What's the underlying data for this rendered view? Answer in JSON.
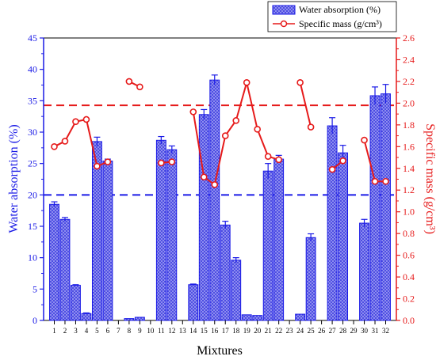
{
  "chart_data": {
    "type": "bar",
    "categories": [
      "1",
      "2",
      "3",
      "4",
      "5",
      "6",
      "7",
      "8",
      "9",
      "10",
      "11",
      "12",
      "13",
      "14",
      "15",
      "16",
      "17",
      "18",
      "19",
      "20",
      "21",
      "22",
      "23",
      "24",
      "25",
      "26",
      "27",
      "28",
      "29",
      "30",
      "31",
      "32"
    ],
    "xlabel": "Mixtures",
    "ylabel_left": "Water absorption (%)",
    "ylabel_right": "Specific mass (g/cm³)",
    "ylim_left": [
      0,
      45
    ],
    "ylim_right": [
      0,
      2.6
    ],
    "yticks_left": [
      0,
      5,
      10,
      15,
      20,
      25,
      30,
      35,
      40,
      45
    ],
    "yticks_right": [
      0.0,
      0.2,
      0.4,
      0.6,
      0.8,
      1.0,
      1.2,
      1.4,
      1.6,
      1.8,
      2.0,
      2.2,
      2.4,
      2.6
    ],
    "grid": false,
    "legend_position": "top-right",
    "series": [
      {
        "name": "Water absorption (%)",
        "type": "bar",
        "axis": "left",
        "color": "#1a1ae6",
        "values": [
          18.5,
          16.1,
          5.6,
          1.1,
          28.5,
          25.4,
          null,
          0.3,
          0.5,
          null,
          28.7,
          27.2,
          null,
          5.7,
          32.8,
          38.3,
          15.2,
          9.6,
          0.9,
          0.8,
          23.8,
          25.7,
          null,
          1.0,
          13.2,
          null,
          31.0,
          26.7,
          null,
          15.5,
          35.8,
          36.1
        ],
        "errors": [
          0.4,
          0.3,
          0.1,
          0.1,
          0.7,
          0.3,
          null,
          0.05,
          0.05,
          null,
          0.6,
          0.6,
          null,
          0.1,
          0.8,
          0.8,
          0.6,
          0.4,
          0.05,
          0.05,
          1.2,
          0.6,
          null,
          0.05,
          0.6,
          null,
          1.3,
          1.2,
          null,
          0.6,
          1.4,
          1.5
        ]
      },
      {
        "name": "Specific mass (g/cm³)",
        "type": "line",
        "axis": "right",
        "color": "#e61a1a",
        "values": [
          1.6,
          1.65,
          1.83,
          1.85,
          1.42,
          1.46,
          null,
          2.2,
          2.15,
          null,
          1.45,
          1.46,
          null,
          1.92,
          1.32,
          1.25,
          1.7,
          1.84,
          2.19,
          1.76,
          1.51,
          1.48,
          null,
          2.19,
          1.78,
          null,
          1.39,
          1.47,
          null,
          1.66,
          1.28,
          1.28
        ],
        "errors": [
          0.02,
          0.02,
          0.02,
          0.02,
          0.02,
          0.02,
          null,
          0.02,
          0.02,
          null,
          0.02,
          0.02,
          null,
          0.02,
          0.02,
          0.02,
          0.02,
          0.02,
          0.02,
          0.02,
          0.02,
          0.02,
          null,
          0.02,
          0.02,
          null,
          0.02,
          0.02,
          null,
          0.02,
          0.02,
          0.02
        ]
      }
    ],
    "reference_lines": [
      {
        "axis": "left",
        "value": 20,
        "color": "#1a1ae6",
        "style": "dashed"
      },
      {
        "axis": "right",
        "value": 1.98,
        "color": "#e61a1a",
        "style": "dashed"
      }
    ]
  }
}
